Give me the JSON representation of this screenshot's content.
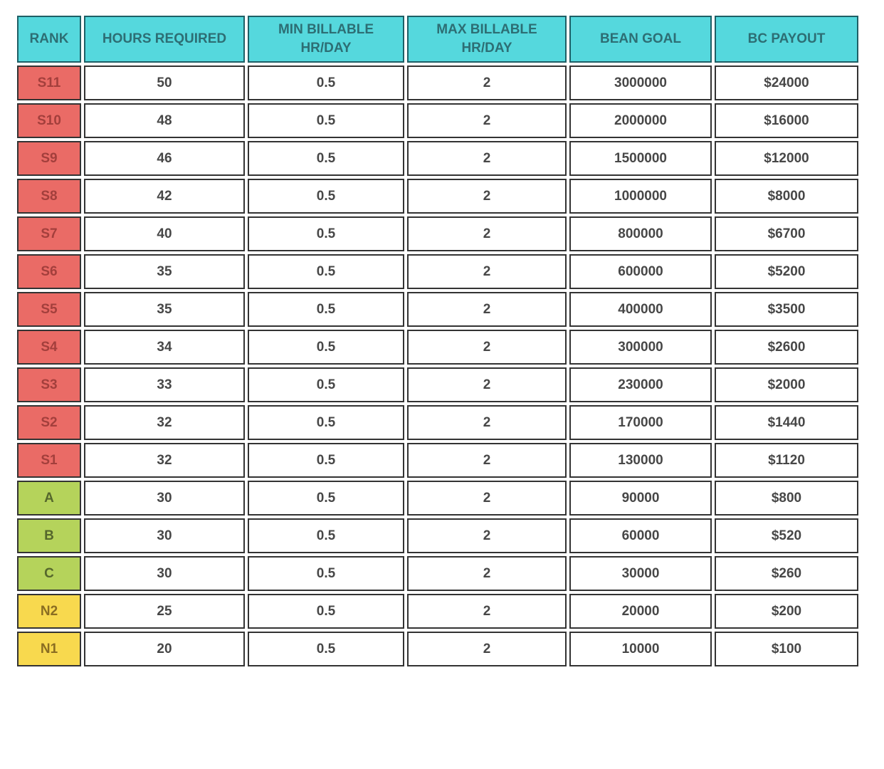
{
  "colors": {
    "header_bg": "#55d8dd",
    "header_text": "#2d6e74",
    "header_border": "#1e5f66",
    "cell_border": "#333333",
    "cell_text": "#474747",
    "cell_bg": "#ffffff",
    "tier_s_bg": "#ea6b66",
    "tier_s_text": "#a33f3c",
    "tier_abc_bg": "#b5d35b",
    "tier_abc_text": "#55672c",
    "tier_n_bg": "#f8d94e",
    "tier_n_text": "#8a6d22",
    "page_bg": "#ffffff"
  },
  "chart_data": {
    "type": "table",
    "columns": [
      "RANK",
      "HOURS REQUIRED",
      "MIN BILLABLE HR/DAY",
      "MAX BILLABLE HR/DAY",
      "BEAN GOAL",
      "BC PAYOUT"
    ],
    "rows": [
      {
        "rank": "S11",
        "tier": "s",
        "hours": "50",
        "min_billable": "0.5",
        "max_billable": "2",
        "bean_goal": "3000000",
        "bc_payout": "$24000"
      },
      {
        "rank": "S10",
        "tier": "s",
        "hours": "48",
        "min_billable": "0.5",
        "max_billable": "2",
        "bean_goal": "2000000",
        "bc_payout": "$16000"
      },
      {
        "rank": "S9",
        "tier": "s",
        "hours": "46",
        "min_billable": "0.5",
        "max_billable": "2",
        "bean_goal": "1500000",
        "bc_payout": "$12000"
      },
      {
        "rank": "S8",
        "tier": "s",
        "hours": "42",
        "min_billable": "0.5",
        "max_billable": "2",
        "bean_goal": "1000000",
        "bc_payout": "$8000"
      },
      {
        "rank": "S7",
        "tier": "s",
        "hours": "40",
        "min_billable": "0.5",
        "max_billable": "2",
        "bean_goal": "800000",
        "bc_payout": "$6700"
      },
      {
        "rank": "S6",
        "tier": "s",
        "hours": "35",
        "min_billable": "0.5",
        "max_billable": "2",
        "bean_goal": "600000",
        "bc_payout": "$5200"
      },
      {
        "rank": "S5",
        "tier": "s",
        "hours": "35",
        "min_billable": "0.5",
        "max_billable": "2",
        "bean_goal": "400000",
        "bc_payout": "$3500"
      },
      {
        "rank": "S4",
        "tier": "s",
        "hours": "34",
        "min_billable": "0.5",
        "max_billable": "2",
        "bean_goal": "300000",
        "bc_payout": "$2600"
      },
      {
        "rank": "S3",
        "tier": "s",
        "hours": "33",
        "min_billable": "0.5",
        "max_billable": "2",
        "bean_goal": "230000",
        "bc_payout": "$2000"
      },
      {
        "rank": "S2",
        "tier": "s",
        "hours": "32",
        "min_billable": "0.5",
        "max_billable": "2",
        "bean_goal": "170000",
        "bc_payout": "$1440"
      },
      {
        "rank": "S1",
        "tier": "s",
        "hours": "32",
        "min_billable": "0.5",
        "max_billable": "2",
        "bean_goal": "130000",
        "bc_payout": "$1120"
      },
      {
        "rank": "A",
        "tier": "abc",
        "hours": "30",
        "min_billable": "0.5",
        "max_billable": "2",
        "bean_goal": "90000",
        "bc_payout": "$800"
      },
      {
        "rank": "B",
        "tier": "abc",
        "hours": "30",
        "min_billable": "0.5",
        "max_billable": "2",
        "bean_goal": "60000",
        "bc_payout": "$520"
      },
      {
        "rank": "C",
        "tier": "abc",
        "hours": "30",
        "min_billable": "0.5",
        "max_billable": "2",
        "bean_goal": "30000",
        "bc_payout": "$260"
      },
      {
        "rank": "N2",
        "tier": "n",
        "hours": "25",
        "min_billable": "0.5",
        "max_billable": "2",
        "bean_goal": "20000",
        "bc_payout": "$200"
      },
      {
        "rank": "N1",
        "tier": "n",
        "hours": "20",
        "min_billable": "0.5",
        "max_billable": "2",
        "bean_goal": "10000",
        "bc_payout": "$100"
      }
    ]
  }
}
